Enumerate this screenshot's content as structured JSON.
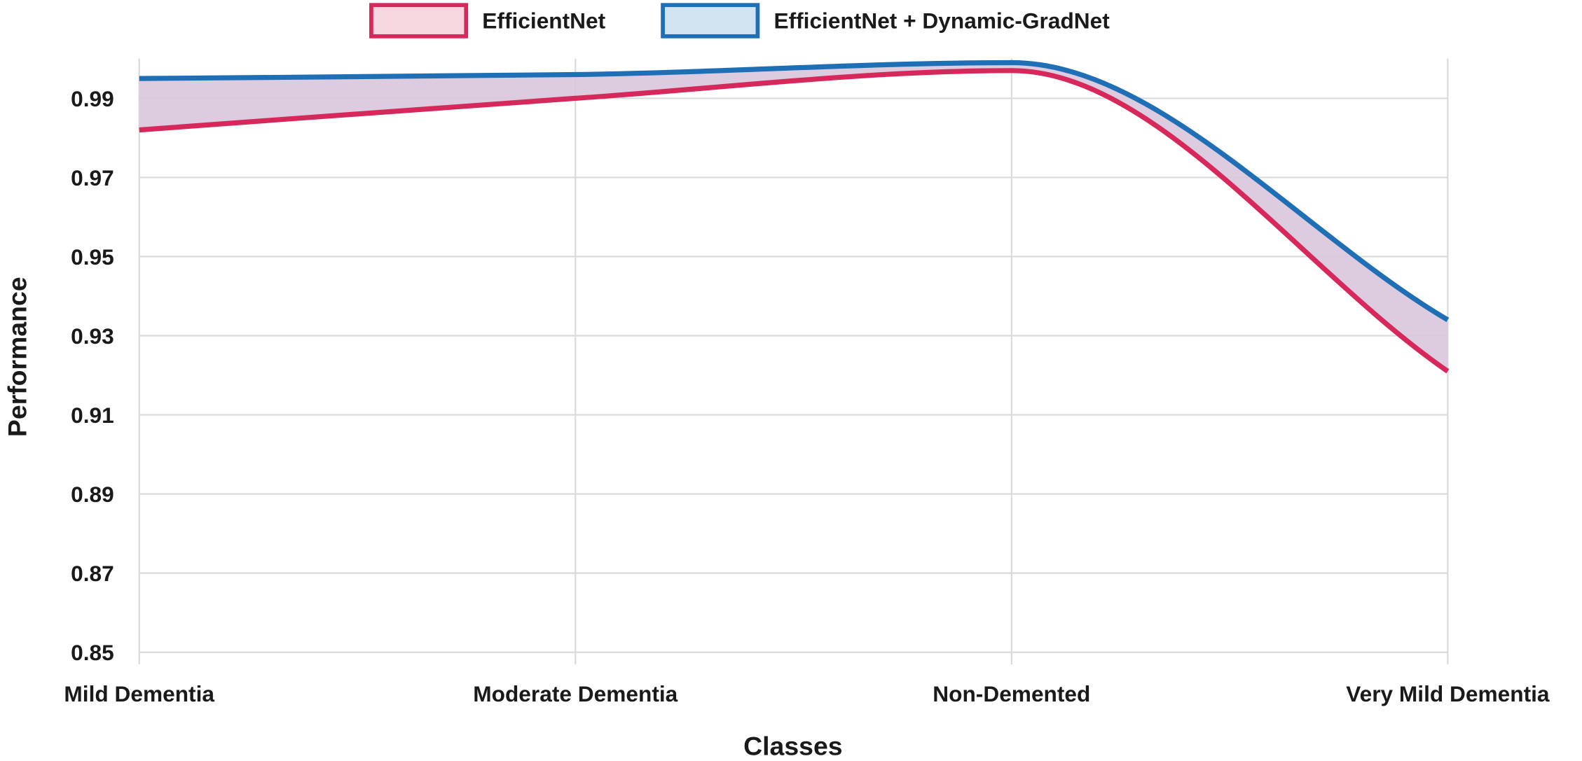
{
  "chart_data": {
    "type": "area",
    "categories": [
      "Mild Dementia",
      "Moderate Dementia",
      "Non-Demented",
      "Very Mild Dementia"
    ],
    "series": [
      {
        "name": "EfficientNet",
        "values": [
          0.982,
          0.99,
          0.997,
          0.921
        ],
        "stroke": "#d6285a",
        "fill": "#f6d7df"
      },
      {
        "name": "EfficientNet + Dynamic-GradNet",
        "values": [
          0.995,
          0.996,
          0.999,
          0.934
        ],
        "stroke": "#1f6fb6",
        "fill": "#d2e3f2"
      }
    ],
    "band_fill": "#d9c6dc",
    "xlabel": "Classes",
    "ylabel": "Performance",
    "ylim": [
      0.85,
      1.0
    ],
    "yticks": [
      "0.99",
      "0.97",
      "0.95",
      "0.93",
      "0.91",
      "0.89",
      "0.87",
      "0.85"
    ],
    "grid": true,
    "legend_position": "top-center"
  }
}
